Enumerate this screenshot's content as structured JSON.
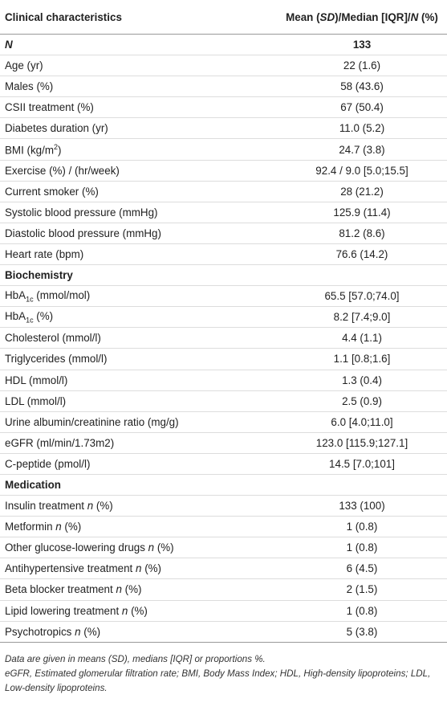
{
  "table": {
    "header": [
      "Clinical characteristics",
      [
        "Mean (",
        {
          "text": "SD",
          "style": "italic"
        },
        ")/Median [IQR]/",
        {
          "text": "N",
          "style": "italic"
        },
        " (%)"
      ]
    ],
    "rows": [
      {
        "label": [
          {
            "text": "N",
            "style": "italic"
          }
        ],
        "value": "133",
        "bold": true
      },
      {
        "label": "Age (yr)",
        "value": "22 (1.6)"
      },
      {
        "label": "Males (%)",
        "value": "58 (43.6)"
      },
      {
        "label": "CSII treatment (%)",
        "value": "67 (50.4)"
      },
      {
        "label": "Diabetes duration (yr)",
        "value": "11.0 (5.2)"
      },
      {
        "label": [
          "BMI (kg/m",
          {
            "text": "2",
            "style": "sup"
          },
          ")"
        ],
        "value": "24.7 (3.8)"
      },
      {
        "label": "Exercise (%) / (hr/week)",
        "value": "92.4 / 9.0 [5.0;15.5]"
      },
      {
        "label": "Current smoker (%)",
        "value": "28 (21.2)"
      },
      {
        "label": "Systolic blood pressure (mmHg)",
        "value": "125.9 (11.4)"
      },
      {
        "label": "Diastolic blood pressure (mmHg)",
        "value": "81.2 (8.6)"
      },
      {
        "label": "Heart rate (bpm)",
        "value": "76.6 (14.2)"
      },
      {
        "section": "Biochemistry"
      },
      {
        "label": [
          "HbA",
          {
            "text": "1c",
            "style": "sub"
          },
          " (mmol/mol)"
        ],
        "value": "65.5 [57.0;74.0]"
      },
      {
        "label": [
          "HbA",
          {
            "text": "1c",
            "style": "sub"
          },
          " (%)"
        ],
        "value": "8.2 [7.4;9.0]"
      },
      {
        "label": "Cholesterol (mmol/l)",
        "value": "4.4 (1.1)"
      },
      {
        "label": "Triglycerides (mmol/l)",
        "value": "1.1 [0.8;1.6]"
      },
      {
        "label": "HDL (mmol/l)",
        "value": "1.3 (0.4)"
      },
      {
        "label": "LDL (mmol/l)",
        "value": "2.5 (0.9)"
      },
      {
        "label": "Urine albumin/creatinine ratio (mg/g)",
        "value": "6.0 [4.0;11.0]"
      },
      {
        "label": "eGFR (ml/min/1.73m2)",
        "value": "123.0 [115.9;127.1]"
      },
      {
        "label": "C-peptide (pmol/l)",
        "value": "14.5 [7.0;101]"
      },
      {
        "section": "Medication"
      },
      {
        "label": [
          "Insulin treatment ",
          {
            "text": "n",
            "style": "italic"
          },
          " (%)"
        ],
        "value": "133 (100)"
      },
      {
        "label": [
          "Metformin ",
          {
            "text": "n",
            "style": "italic"
          },
          " (%)"
        ],
        "value": "1 (0.8)"
      },
      {
        "label": [
          "Other glucose-lowering drugs ",
          {
            "text": "n",
            "style": "italic"
          },
          " (%)"
        ],
        "value": "1 (0.8)"
      },
      {
        "label": [
          "Antihypertensive treatment ",
          {
            "text": "n",
            "style": "italic"
          },
          " (%)"
        ],
        "value": "6 (4.5)"
      },
      {
        "label": [
          "Beta blocker treatment ",
          {
            "text": "n",
            "style": "italic"
          },
          " (%)"
        ],
        "value": "2 (1.5)"
      },
      {
        "label": [
          "Lipid lowering treatment ",
          {
            "text": "n",
            "style": "italic"
          },
          " (%)"
        ],
        "value": "1 (0.8)"
      },
      {
        "label": [
          "Psychotropics ",
          {
            "text": "n",
            "style": "italic"
          },
          " (%)"
        ],
        "value": "5 (3.8)"
      }
    ],
    "footnotes": [
      "Data are given in means (SD), medians [IQR] or proportions %.",
      "eGFR, Estimated glomerular filtration rate; BMI, Body Mass Index; HDL, High-density lipoproteins; LDL, Low-density lipoproteins."
    ]
  }
}
